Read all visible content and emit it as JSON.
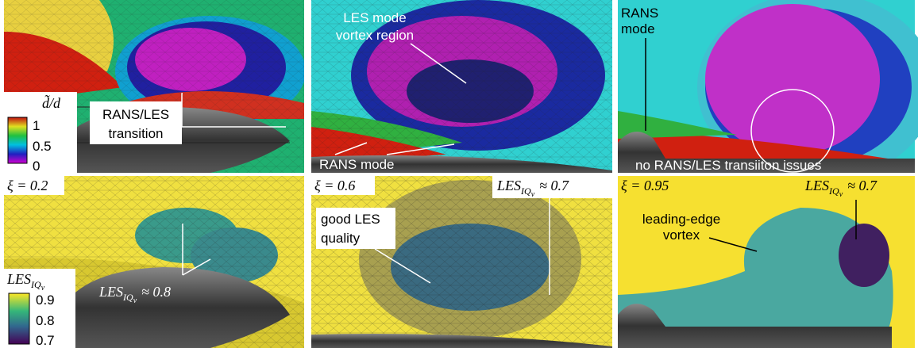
{
  "panels": [
    {
      "colorbar": {
        "title": "d̃/d",
        "ticks": [
          "1",
          "0.5",
          "0"
        ]
      },
      "annotation": [
        "RANS/LES",
        "transition"
      ]
    },
    {
      "annotation": [
        "LES mode",
        "vortex region"
      ],
      "annotation2": "RANS mode"
    },
    {
      "annotation": [
        "RANS",
        "mode"
      ],
      "annotation2": "no RANS/LES transiiton issues"
    },
    {
      "parameter": "ξ = 0.2",
      "colorbar": {
        "title": {
          "symbol": "LES",
          "sub": "IQ",
          "subsub": "ν"
        },
        "ticks": [
          "0.9",
          "0.8",
          "0.7"
        ]
      },
      "quality": {
        "symbol": "LES",
        "sub": "IQ",
        "subsub": "ν",
        "relation": "≈ 0.8"
      }
    },
    {
      "parameter": "ξ = 0.6",
      "quality": {
        "symbol": "LES",
        "sub": "IQ",
        "subsub": "ν",
        "relation": "≈ 0.7"
      },
      "annotation": [
        "good LES",
        "quality"
      ]
    },
    {
      "parameter": "ξ = 0.95",
      "quality": {
        "symbol": "LES",
        "sub": "IQ",
        "subsub": "ν",
        "relation": "≈ 0.7"
      },
      "annotation": [
        "leading-edge",
        "vortex"
      ]
    }
  ]
}
